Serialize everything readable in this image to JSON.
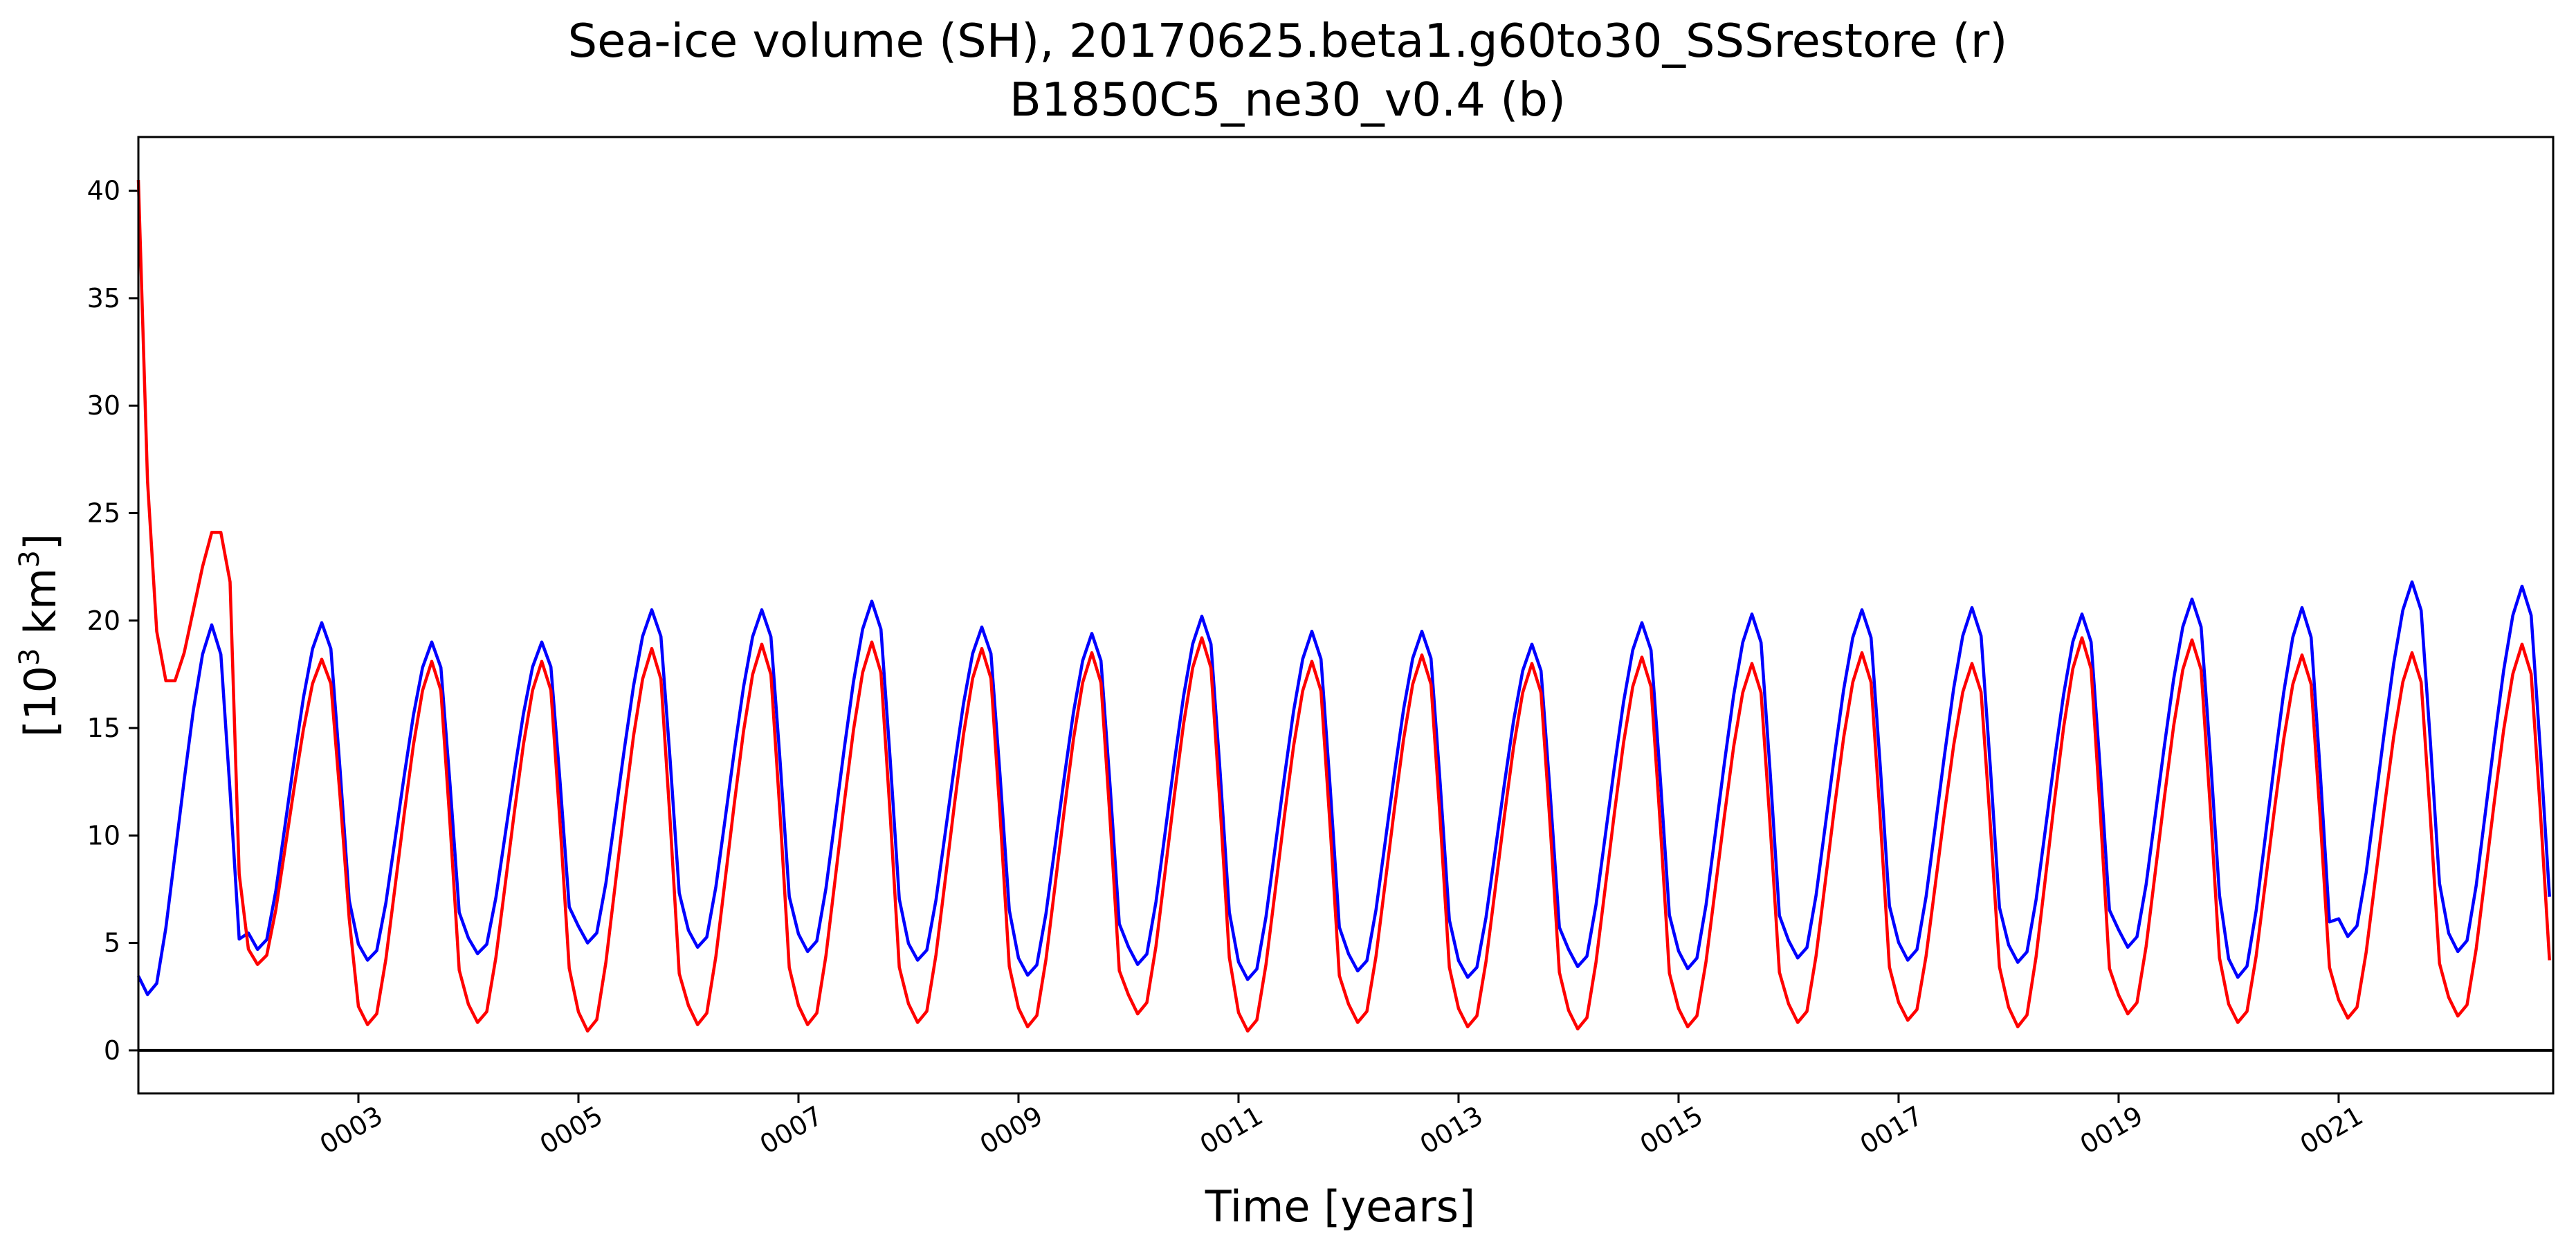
{
  "chart_data": {
    "type": "line",
    "title_line1": "Sea-ice volume (SH), 20170625.beta1.g60to30_SSSrestore (r)",
    "title_line2": "B1850C5_ne30_v0.4 (b)",
    "xlabel": "Time [years]",
    "ylabel_prefix": "[10",
    "ylabel_exp1": "3",
    "ylabel_mid": " km",
    "ylabel_exp2": "3",
    "ylabel_suffix": "]",
    "xlim": [
      1.0,
      22.95
    ],
    "ylim": [
      -2,
      42.5
    ],
    "xticks": [
      {
        "value": 3,
        "label": "0003"
      },
      {
        "value": 5,
        "label": "0005"
      },
      {
        "value": 7,
        "label": "0007"
      },
      {
        "value": 9,
        "label": "0009"
      },
      {
        "value": 11,
        "label": "0011"
      },
      {
        "value": 13,
        "label": "0013"
      },
      {
        "value": 15,
        "label": "0015"
      },
      {
        "value": 17,
        "label": "0017"
      },
      {
        "value": 19,
        "label": "0019"
      },
      {
        "value": 21,
        "label": "0021"
      }
    ],
    "yticks": [
      {
        "value": 0,
        "label": "0"
      },
      {
        "value": 5,
        "label": "5"
      },
      {
        "value": 10,
        "label": "10"
      },
      {
        "value": 15,
        "label": "15"
      },
      {
        "value": 20,
        "label": "20"
      },
      {
        "value": 25,
        "label": "25"
      },
      {
        "value": 30,
        "label": "30"
      },
      {
        "value": 35,
        "label": "35"
      },
      {
        "value": 40,
        "label": "40"
      }
    ],
    "zero_line": 0,
    "monthly_shape": [
      0.05,
      0.0,
      0.03,
      0.18,
      0.38,
      0.58,
      0.77,
      0.92,
      1.0,
      0.92,
      0.55,
      0.15
    ],
    "series": [
      {
        "name": "r",
        "color": "#ff0000",
        "year_start": 1,
        "first_months": [
          40.5,
          26.5,
          19.5,
          17.2,
          17.2,
          18.5,
          20.5,
          22.5,
          24.1,
          24.1,
          21.8,
          8.2
        ],
        "annual_min": [
          null,
          4.0,
          1.2,
          1.3,
          0.9,
          1.2,
          1.2,
          1.3,
          1.1,
          1.7,
          0.9,
          1.3,
          1.1,
          1.0,
          1.1,
          1.3,
          1.4,
          1.1,
          1.7,
          1.3,
          1.5,
          1.6
        ],
        "annual_max": [
          null,
          18.2,
          18.1,
          18.1,
          18.7,
          18.9,
          19.0,
          18.7,
          18.5,
          19.2,
          18.1,
          18.4,
          18.0,
          18.3,
          18.0,
          18.5,
          18.0,
          19.2,
          19.1,
          18.4,
          18.5,
          18.9
        ]
      },
      {
        "name": "b",
        "color": "#0000ff",
        "year_start": 1,
        "annual_min": [
          2.6,
          4.7,
          4.2,
          4.5,
          5.0,
          4.8,
          4.6,
          4.2,
          3.5,
          4.0,
          3.3,
          3.7,
          3.4,
          3.9,
          3.8,
          4.3,
          4.2,
          4.1,
          4.8,
          3.4,
          5.3,
          4.6
        ],
        "annual_max": [
          19.8,
          19.9,
          19.0,
          19.0,
          20.5,
          20.5,
          20.9,
          19.7,
          19.4,
          20.2,
          19.5,
          19.5,
          18.9,
          19.9,
          20.3,
          20.5,
          20.6,
          20.3,
          21.0,
          20.6,
          21.8,
          21.6
        ]
      }
    ]
  }
}
